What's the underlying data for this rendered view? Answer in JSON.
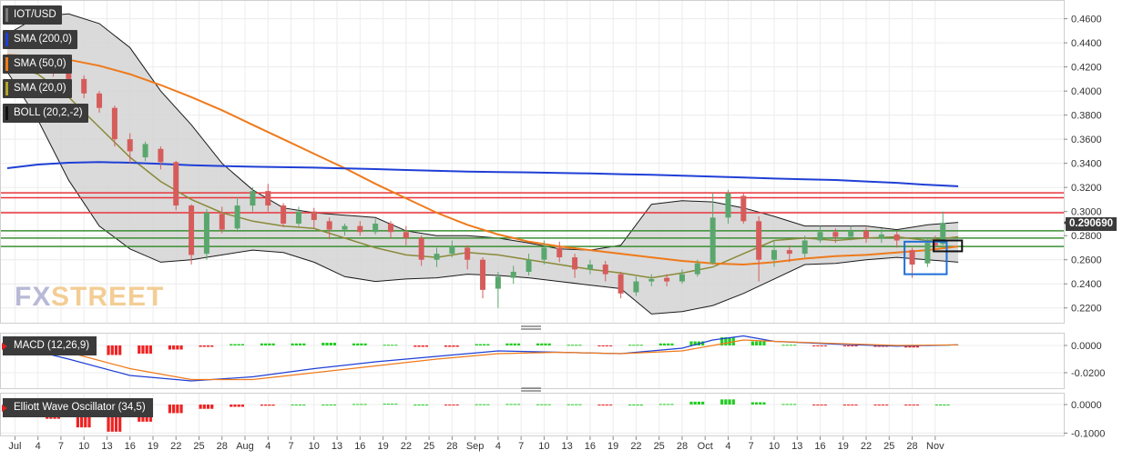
{
  "legends": {
    "symbol": "IOT/USD",
    "sma200": "SMA (200,0)",
    "sma50": "SMA (50,0)",
    "sma20": "SMA (20,0)",
    "boll": "BOLL (20,2,-2)",
    "macd": "MACD (12,26,9)",
    "ewo": "Elliott Wave Oscillator (34,5)"
  },
  "watermark": {
    "fx": "FX",
    "street": "STREET"
  },
  "price_tag": "0.290690",
  "colors": {
    "sma200": "#1f3fd6",
    "sma50": "#ef7a1a",
    "sma20": "#8a8a3a",
    "up": "#5aa76e",
    "down": "#d65c5c",
    "resistance": "#e8343a",
    "support": "#3a8f32",
    "box_blue": "#1f6fd6",
    "box_black": "#111111",
    "hist_up": "#22cc22",
    "hist_down": "#ee2222",
    "macd_line": "#1f3fd6",
    "signal_line": "#ef7a1a"
  },
  "chart_data": [
    {
      "type": "line",
      "title": "IOT/USD",
      "x_axis_ticks": [
        "Jul",
        "4",
        "7",
        "10",
        "13",
        "16",
        "19",
        "22",
        "25",
        "28",
        "Aug",
        "4",
        "7",
        "10",
        "13",
        "16",
        "19",
        "22",
        "25",
        "28",
        "Sep",
        "4",
        "7",
        "10",
        "13",
        "16",
        "19",
        "22",
        "25",
        "28",
        "Oct",
        "4",
        "7",
        "10",
        "13",
        "16",
        "19",
        "22",
        "25",
        "28",
        "Nov"
      ],
      "y_axis_ticks": [
        "0.4600",
        "0.4400",
        "0.4200",
        "0.4000",
        "0.3800",
        "0.3600",
        "0.3400",
        "0.3200",
        "0.3000",
        "0.2800",
        "0.2600",
        "0.2400",
        "0.2200"
      ],
      "ylim": [
        0.21,
        0.468
      ],
      "last_price": 0.29069,
      "horizontal_lines": {
        "resistance": [
          0.3155,
          0.3115,
          0.299
        ],
        "support": [
          0.284,
          0.278,
          0.271
        ]
      },
      "series": [
        {
          "name": "SMA (200,0)",
          "x": [
            0,
            4,
            8,
            12,
            16,
            20,
            24,
            28,
            32,
            36,
            40,
            44,
            48,
            52,
            56,
            60,
            64,
            68,
            72,
            76,
            80,
            84,
            88,
            92,
            96,
            100,
            104,
            108,
            112,
            116,
            120,
            124
          ],
          "values": [
            0.336,
            0.339,
            0.3405,
            0.341,
            0.3405,
            0.3395,
            0.3385,
            0.3378,
            0.3372,
            0.3368,
            0.3364,
            0.3358,
            0.3352,
            0.3345,
            0.3338,
            0.3332,
            0.3328,
            0.3325,
            0.332,
            0.3316,
            0.331,
            0.3305,
            0.3298,
            0.329,
            0.3282,
            0.3274,
            0.3268,
            0.3262,
            0.325,
            0.3238,
            0.3222,
            0.321
          ]
        },
        {
          "name": "SMA (50,0)",
          "x": [
            0,
            4,
            8,
            12,
            16,
            20,
            24,
            28,
            32,
            36,
            40,
            44,
            48,
            52,
            56,
            60,
            64,
            68,
            72,
            76,
            80,
            84,
            88,
            92,
            96,
            100,
            104,
            108,
            112,
            116,
            120,
            124
          ],
          "values": [
            0.43,
            0.429,
            0.426,
            0.421,
            0.414,
            0.405,
            0.395,
            0.384,
            0.372,
            0.36,
            0.348,
            0.336,
            0.323,
            0.311,
            0.299,
            0.289,
            0.281,
            0.275,
            0.271,
            0.268,
            0.265,
            0.262,
            0.259,
            0.257,
            0.256,
            0.258,
            0.261,
            0.263,
            0.264,
            0.266,
            0.268,
            0.271
          ]
        },
        {
          "name": "SMA (20,0)",
          "x": [
            0,
            4,
            8,
            12,
            16,
            20,
            24,
            28,
            32,
            36,
            40,
            44,
            48,
            52,
            56,
            60,
            64,
            68,
            72,
            76,
            80,
            84,
            88,
            92,
            96,
            100,
            104,
            108,
            112,
            116,
            120,
            124
          ],
          "values": [
            0.422,
            0.414,
            0.395,
            0.37,
            0.345,
            0.325,
            0.31,
            0.299,
            0.292,
            0.288,
            0.286,
            0.278,
            0.27,
            0.264,
            0.262,
            0.266,
            0.264,
            0.26,
            0.256,
            0.252,
            0.249,
            0.245,
            0.249,
            0.254,
            0.265,
            0.276,
            0.278,
            0.276,
            0.278,
            0.279,
            0.276,
            0.279
          ]
        },
        {
          "name": "BOLL upper",
          "x": [
            0,
            4,
            8,
            12,
            16,
            20,
            24,
            28,
            32,
            36,
            40,
            44,
            48,
            52,
            56,
            60,
            64,
            68,
            72,
            76,
            80,
            84,
            88,
            92,
            96,
            100,
            104,
            108,
            112,
            116,
            120,
            124
          ],
          "values": [
            0.447,
            0.462,
            0.464,
            0.456,
            0.436,
            0.4,
            0.372,
            0.34,
            0.318,
            0.303,
            0.299,
            0.297,
            0.295,
            0.284,
            0.28,
            0.28,
            0.278,
            0.274,
            0.269,
            0.268,
            0.272,
            0.306,
            0.309,
            0.308,
            0.303,
            0.296,
            0.288,
            0.288,
            0.288,
            0.285,
            0.289,
            0.291
          ]
        },
        {
          "name": "BOLL lower",
          "x": [
            0,
            4,
            8,
            12,
            16,
            20,
            24,
            28,
            32,
            36,
            40,
            44,
            48,
            52,
            56,
            60,
            64,
            68,
            72,
            76,
            80,
            84,
            88,
            92,
            96,
            100,
            104,
            108,
            112,
            116,
            120,
            124
          ],
          "values": [
            0.416,
            0.376,
            0.326,
            0.288,
            0.269,
            0.258,
            0.26,
            0.264,
            0.268,
            0.266,
            0.258,
            0.246,
            0.242,
            0.244,
            0.245,
            0.248,
            0.247,
            0.245,
            0.242,
            0.239,
            0.236,
            0.215,
            0.217,
            0.222,
            0.232,
            0.244,
            0.256,
            0.257,
            0.26,
            0.262,
            0.26,
            0.258
          ]
        }
      ],
      "candles": [
        [
          2,
          0.42,
          0.427,
          0.43,
          0.418
        ],
        [
          4,
          0.426,
          0.423,
          0.429,
          0.42
        ],
        [
          6,
          0.423,
          0.415,
          0.426,
          0.412
        ],
        [
          8,
          0.415,
          0.41,
          0.42,
          0.406
        ],
        [
          10,
          0.41,
          0.398,
          0.413,
          0.394
        ],
        [
          12,
          0.398,
          0.386,
          0.4,
          0.382
        ],
        [
          14,
          0.386,
          0.36,
          0.388,
          0.354
        ],
        [
          16,
          0.36,
          0.35,
          0.365,
          0.34
        ],
        [
          18,
          0.345,
          0.356,
          0.358,
          0.342
        ],
        [
          20,
          0.352,
          0.341,
          0.354,
          0.335
        ],
        [
          22,
          0.341,
          0.305,
          0.342,
          0.301
        ],
        [
          24,
          0.305,
          0.264,
          0.306,
          0.256
        ],
        [
          26,
          0.265,
          0.299,
          0.302,
          0.26
        ],
        [
          28,
          0.298,
          0.285,
          0.304,
          0.282
        ],
        [
          30,
          0.286,
          0.305,
          0.312,
          0.283
        ],
        [
          32,
          0.305,
          0.317,
          0.32,
          0.3
        ],
        [
          34,
          0.317,
          0.305,
          0.323,
          0.3
        ],
        [
          36,
          0.305,
          0.29,
          0.307,
          0.287
        ],
        [
          38,
          0.29,
          0.3,
          0.304,
          0.288
        ],
        [
          40,
          0.3,
          0.293,
          0.303,
          0.286
        ],
        [
          42,
          0.292,
          0.285,
          0.295,
          0.277
        ],
        [
          44,
          0.285,
          0.288,
          0.29,
          0.28
        ],
        [
          46,
          0.288,
          0.283,
          0.292,
          0.28
        ],
        [
          48,
          0.283,
          0.29,
          0.294,
          0.281
        ],
        [
          50,
          0.29,
          0.283,
          0.292,
          0.278
        ],
        [
          52,
          0.283,
          0.278,
          0.288,
          0.272
        ],
        [
          54,
          0.278,
          0.26,
          0.28,
          0.255
        ],
        [
          56,
          0.26,
          0.265,
          0.27,
          0.254
        ],
        [
          58,
          0.265,
          0.271,
          0.276,
          0.262
        ],
        [
          60,
          0.27,
          0.26,
          0.272,
          0.252
        ],
        [
          62,
          0.26,
          0.235,
          0.262,
          0.228
        ],
        [
          64,
          0.236,
          0.246,
          0.25,
          0.22
        ],
        [
          66,
          0.245,
          0.25,
          0.255,
          0.24
        ],
        [
          68,
          0.25,
          0.26,
          0.265,
          0.247
        ],
        [
          70,
          0.26,
          0.27,
          0.276,
          0.256
        ],
        [
          72,
          0.27,
          0.262,
          0.275,
          0.258
        ],
        [
          74,
          0.262,
          0.252,
          0.265,
          0.245
        ],
        [
          76,
          0.252,
          0.256,
          0.26,
          0.248
        ],
        [
          78,
          0.256,
          0.248,
          0.259,
          0.242
        ],
        [
          80,
          0.248,
          0.232,
          0.25,
          0.228
        ],
        [
          82,
          0.233,
          0.242,
          0.246,
          0.23
        ],
        [
          84,
          0.242,
          0.244,
          0.248,
          0.238
        ],
        [
          86,
          0.245,
          0.242,
          0.248,
          0.238
        ],
        [
          88,
          0.242,
          0.248,
          0.252,
          0.24
        ],
        [
          90,
          0.248,
          0.257,
          0.26,
          0.246
        ],
        [
          92,
          0.257,
          0.295,
          0.315,
          0.256
        ],
        [
          94,
          0.295,
          0.315,
          0.318,
          0.29
        ],
        [
          96,
          0.313,
          0.292,
          0.315,
          0.29
        ],
        [
          98,
          0.292,
          0.26,
          0.296,
          0.242
        ],
        [
          100,
          0.26,
          0.268,
          0.276,
          0.254
        ],
        [
          102,
          0.268,
          0.265,
          0.272,
          0.258
        ],
        [
          104,
          0.265,
          0.276,
          0.28,
          0.262
        ],
        [
          106,
          0.276,
          0.283,
          0.288,
          0.274
        ],
        [
          108,
          0.283,
          0.279,
          0.286,
          0.274
        ],
        [
          110,
          0.279,
          0.284,
          0.288,
          0.276
        ],
        [
          112,
          0.284,
          0.278,
          0.287,
          0.274
        ],
        [
          114,
          0.278,
          0.281,
          0.286,
          0.274
        ],
        [
          116,
          0.281,
          0.276,
          0.284,
          0.27
        ],
        [
          118,
          0.268,
          0.256,
          0.27,
          0.245
        ],
        [
          120,
          0.257,
          0.274,
          0.278,
          0.254
        ],
        [
          121,
          0.274,
          0.272,
          0.28,
          0.269
        ],
        [
          122,
          0.273,
          0.2906,
          0.3,
          0.272
        ]
      ]
    },
    {
      "type": "bar",
      "title": "MACD (12,26,9)",
      "y_axis_ticks": [
        "0.0000",
        "-0.0200"
      ],
      "ylim": [
        -0.03,
        0.008
      ],
      "histogram_x": [
        2,
        6,
        10,
        14,
        18,
        22,
        26,
        30,
        34,
        38,
        42,
        46,
        50,
        54,
        58,
        62,
        66,
        70,
        74,
        78,
        82,
        86,
        90,
        94,
        98,
        102,
        106,
        110,
        114,
        118,
        122
      ],
      "histogram": [
        -0.003,
        -0.005,
        -0.006,
        -0.007,
        -0.006,
        -0.003,
        -0.001,
        0.001,
        0.0015,
        0.0015,
        0.002,
        0.0015,
        0.0005,
        -0.001,
        -0.001,
        0.001,
        0.0015,
        0.0015,
        0.0005,
        -0.0005,
        0.0005,
        0.0015,
        0.003,
        0.006,
        0.003,
        0.0005,
        -0.0005,
        -0.0005,
        -0.001,
        -0.0015,
        0.0005
      ],
      "series": [
        {
          "name": "MACD",
          "x": [
            0,
            8,
            16,
            24,
            32,
            40,
            48,
            56,
            64,
            72,
            80,
            88,
            92,
            96,
            100,
            108,
            116,
            124
          ],
          "values": [
            0.001,
            -0.01,
            -0.022,
            -0.026,
            -0.023,
            -0.017,
            -0.012,
            -0.008,
            -0.004,
            -0.005,
            -0.006,
            -0.002,
            0.004,
            0.007,
            0.003,
            0.001,
            -0.0005,
            0.0005
          ]
        },
        {
          "name": "Signal",
          "x": [
            0,
            8,
            16,
            24,
            32,
            40,
            48,
            56,
            64,
            72,
            80,
            88,
            92,
            96,
            100,
            108,
            116,
            124
          ],
          "values": [
            0.003,
            -0.005,
            -0.017,
            -0.025,
            -0.025,
            -0.02,
            -0.015,
            -0.01,
            -0.006,
            -0.005,
            -0.006,
            -0.004,
            0.0,
            0.004,
            0.003,
            0.0015,
            0.0,
            0.0005
          ]
        }
      ]
    },
    {
      "type": "bar",
      "title": "Elliott Wave Oscillator (34,5)",
      "y_axis_ticks": [
        "0.0000",
        "-0.1000"
      ],
      "ylim": [
        -0.105,
        0.035
      ],
      "histogram_x": [
        2,
        6,
        10,
        14,
        18,
        22,
        26,
        30,
        34,
        38,
        42,
        46,
        50,
        54,
        58,
        62,
        66,
        70,
        74,
        78,
        82,
        86,
        90,
        94,
        98,
        102,
        106,
        110,
        114,
        118,
        122
      ],
      "histogram": [
        -0.03,
        -0.05,
        -0.08,
        -0.095,
        -0.06,
        -0.03,
        -0.015,
        -0.008,
        -0.004,
        0.0,
        0.0,
        0.002,
        0.003,
        0.0,
        -0.002,
        0.001,
        0.002,
        0.001,
        0.001,
        -0.001,
        0.0,
        0.002,
        0.01,
        0.018,
        0.008,
        0.002,
        -0.001,
        -0.001,
        -0.002,
        -0.001,
        0.0
      ]
    }
  ]
}
